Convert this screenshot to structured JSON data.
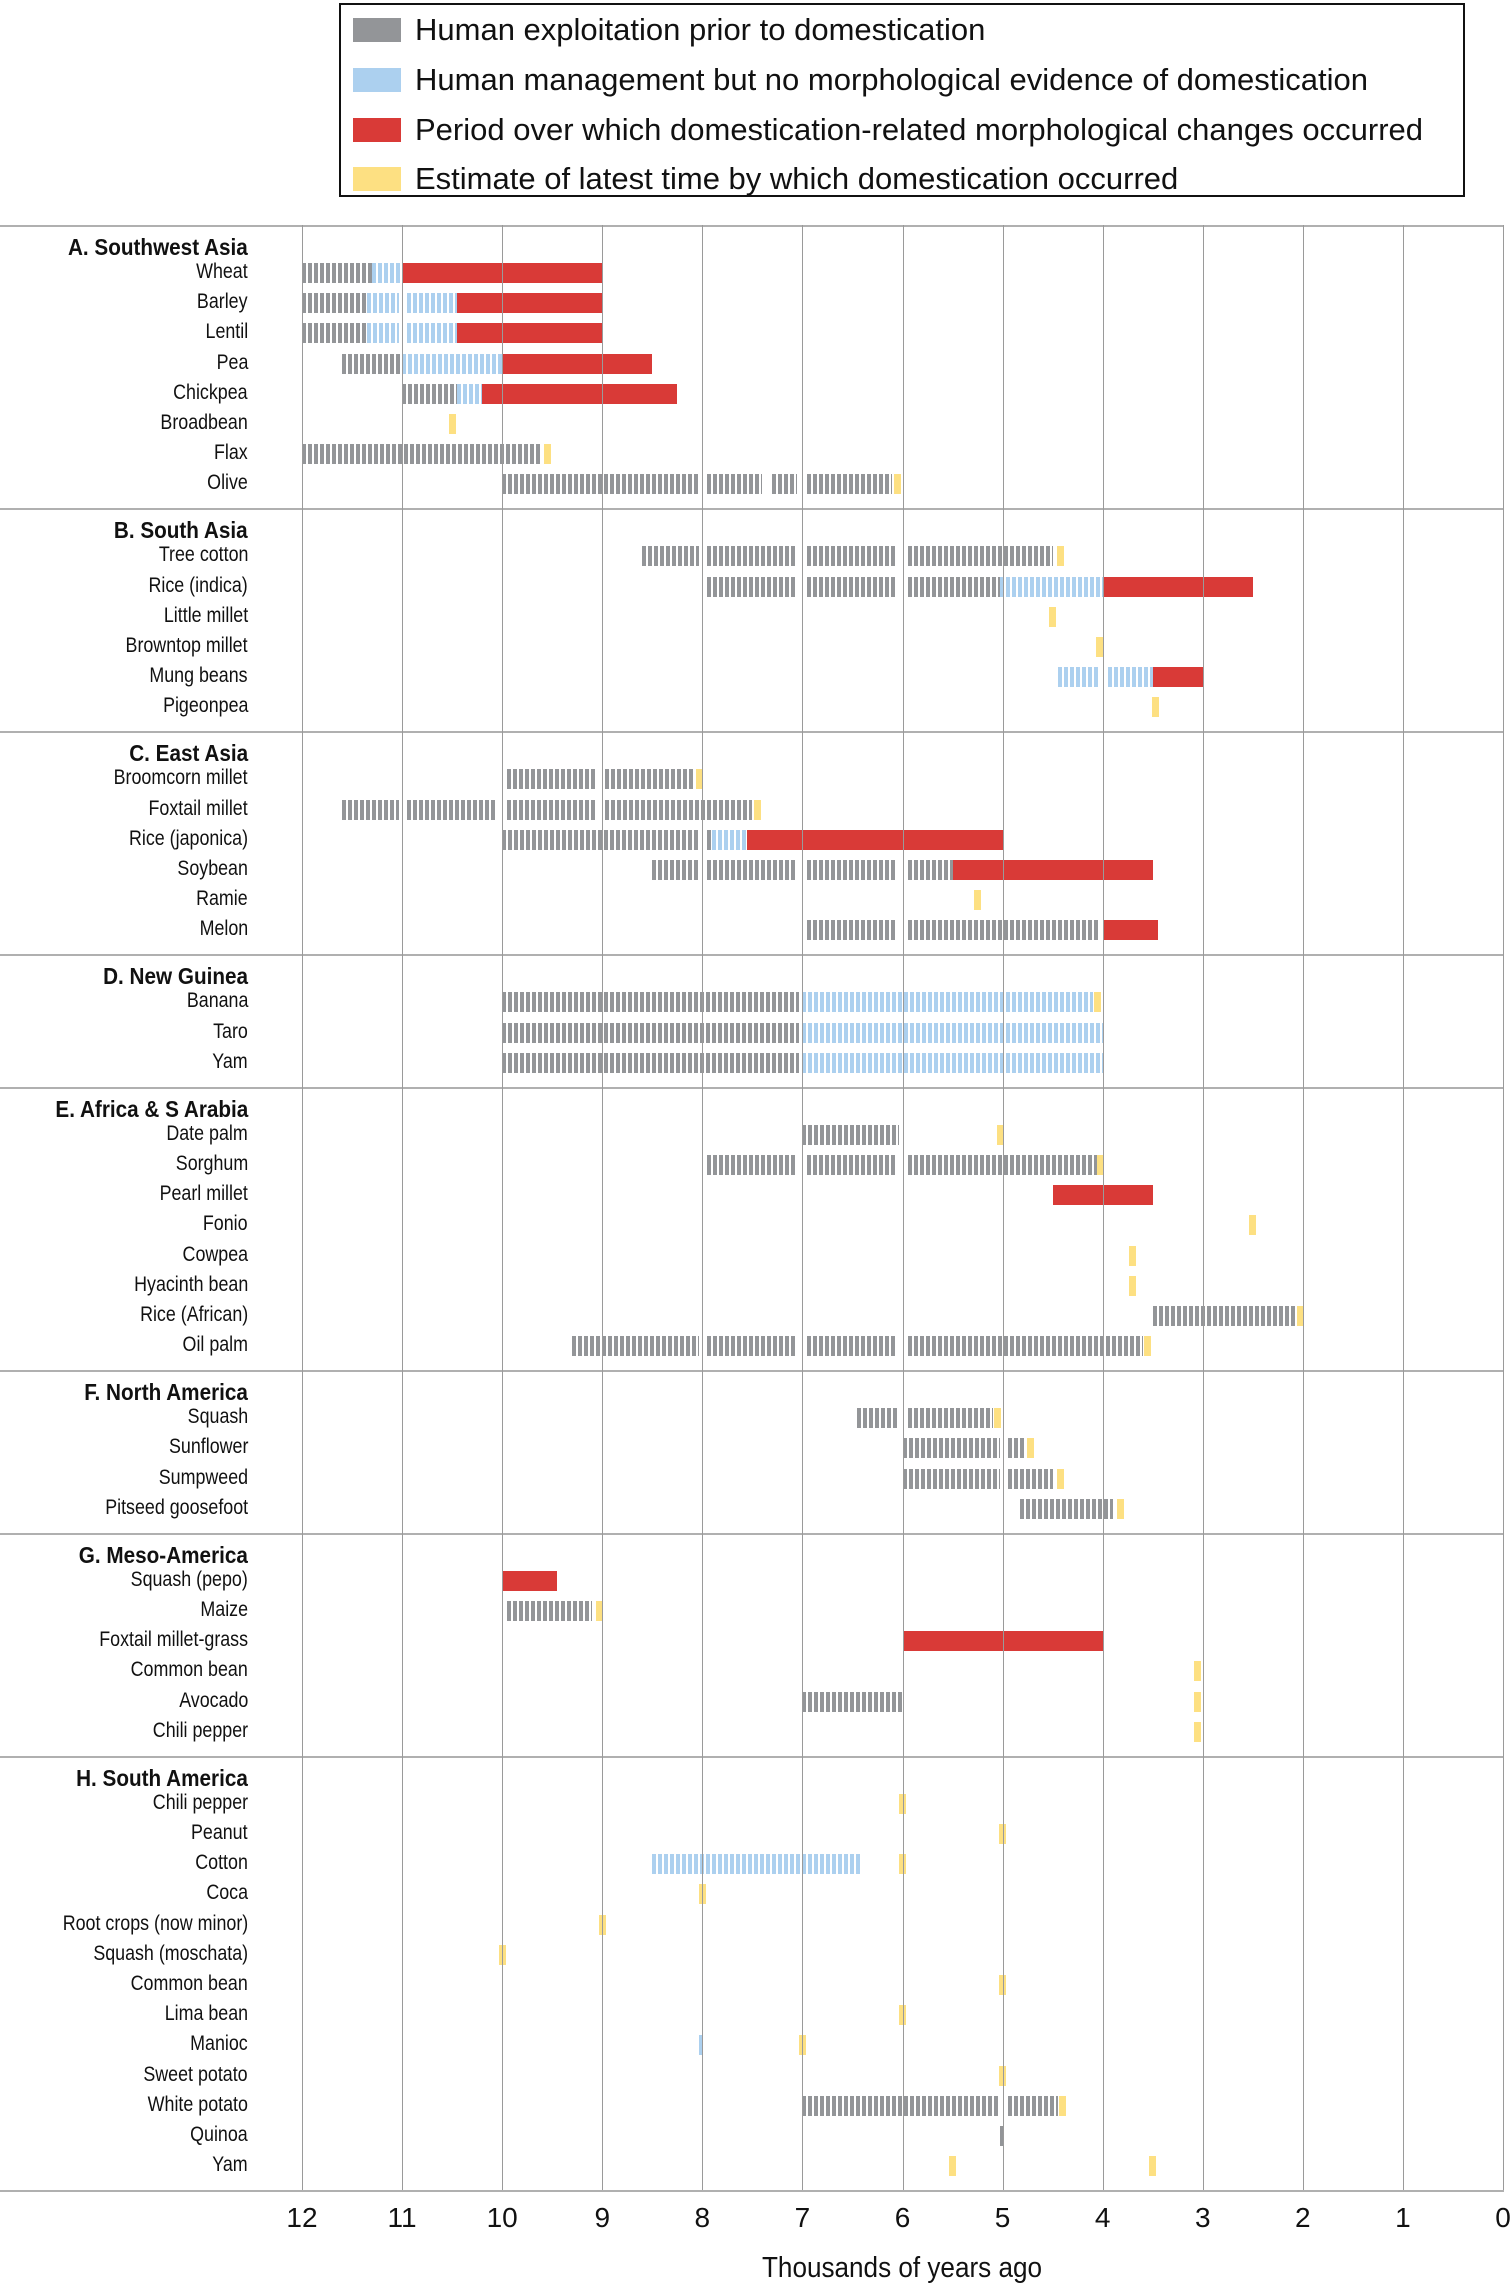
{
  "chart_data": {
    "type": "gantt-bar",
    "xlabel": "Thousands of years ago",
    "xlim": [
      12,
      0
    ],
    "x_reversed": true,
    "ticks": [
      "12",
      "11",
      "10",
      "9",
      "8",
      "7",
      "6",
      "5",
      "4",
      "3",
      "2",
      "1",
      "0"
    ],
    "grid": "vertical",
    "legend_placement": "top",
    "legend": [
      {
        "key": "exploitation",
        "label": "Human exploitation prior to domestication",
        "color": "#939598"
      },
      {
        "key": "management",
        "label": "Human management but no morphological evidence of domestication",
        "color": "#acd0ef"
      },
      {
        "key": "morphological",
        "label": "Period over which domestication-related morphological changes occurred",
        "color": "#d93a37"
      },
      {
        "key": "estimate",
        "label": "Estimate of latest time by which domestication occurred",
        "color": "#fde082"
      }
    ],
    "sections": [
      {
        "title": "A. Southwest Asia",
        "crops": [
          {
            "name": "Wheat",
            "segments": [
              [
                12,
                11.3,
                "exploitation"
              ],
              [
                11.3,
                11,
                "management"
              ],
              [
                11,
                9,
                "morphological"
              ]
            ]
          },
          {
            "name": "Barley",
            "segments": [
              [
                12,
                11.35,
                "exploitation"
              ],
              [
                11.35,
                11.03,
                "management"
              ],
              [
                10.95,
                10.45,
                "management"
              ],
              [
                10.45,
                9,
                "morphological"
              ]
            ]
          },
          {
            "name": "Lentil",
            "segments": [
              [
                12,
                11.35,
                "exploitation"
              ],
              [
                11.35,
                11.03,
                "management"
              ],
              [
                10.95,
                10.45,
                "management"
              ],
              [
                10.45,
                9,
                "morphological"
              ]
            ]
          },
          {
            "name": "Pea",
            "segments": [
              [
                11.6,
                11,
                "exploitation"
              ],
              [
                11,
                10,
                "management"
              ],
              [
                10,
                8.5,
                "morphological"
              ]
            ]
          },
          {
            "name": "Chickpea",
            "segments": [
              [
                11,
                10.45,
                "exploitation"
              ],
              [
                10.45,
                10.2,
                "management"
              ],
              [
                10.2,
                8.25,
                "morphological"
              ]
            ]
          },
          {
            "name": "Broadbean",
            "segments": [
              [
                10.5,
                10.5,
                "estimate"
              ]
            ]
          },
          {
            "name": "Flax",
            "segments": [
              [
                12,
                9.6,
                "exploitation"
              ],
              [
                9.55,
                9.55,
                "estimate"
              ]
            ]
          },
          {
            "name": "Olive",
            "segments": [
              [
                10,
                8.03,
                "exploitation"
              ],
              [
                7.95,
                7.4,
                "exploitation"
              ],
              [
                7.3,
                7.05,
                "exploitation"
              ],
              [
                6.95,
                6.1,
                "exploitation"
              ],
              [
                6.05,
                6.05,
                "estimate"
              ]
            ]
          }
        ]
      },
      {
        "title": "B. South Asia",
        "crops": [
          {
            "name": "Tree cotton",
            "segments": [
              [
                8.6,
                8.03,
                "exploitation"
              ],
              [
                7.95,
                7.05,
                "exploitation"
              ],
              [
                6.95,
                6.05,
                "exploitation"
              ],
              [
                5.95,
                4.5,
                "exploitation"
              ],
              [
                4.42,
                4.42,
                "estimate"
              ]
            ]
          },
          {
            "name": "Rice (indica)",
            "segments": [
              [
                7.95,
                7.05,
                "exploitation"
              ],
              [
                6.95,
                6.05,
                "exploitation"
              ],
              [
                5.95,
                5.03,
                "exploitation"
              ],
              [
                5.03,
                4,
                "management"
              ],
              [
                4,
                2.5,
                "morphological"
              ]
            ]
          },
          {
            "name": "Little millet",
            "segments": [
              [
                4.5,
                4.5,
                "estimate"
              ]
            ]
          },
          {
            "name": "Browntop millet",
            "segments": [
              [
                4.03,
                4.03,
                "estimate"
              ]
            ]
          },
          {
            "name": "Mung beans",
            "segments": [
              [
                4.45,
                4.05,
                "management"
              ],
              [
                3.95,
                3.5,
                "management"
              ],
              [
                3.5,
                3,
                "morphological"
              ]
            ]
          },
          {
            "name": "Pigeonpea",
            "segments": [
              [
                3.47,
                3.47,
                "estimate"
              ]
            ]
          }
        ]
      },
      {
        "title": "C. East Asia",
        "crops": [
          {
            "name": "Broomcorn millet",
            "segments": [
              [
                9.95,
                9.05,
                "exploitation"
              ],
              [
                8.97,
                8.07,
                "exploitation"
              ],
              [
                8.03,
                8.03,
                "estimate"
              ]
            ]
          },
          {
            "name": "Foxtail millet",
            "segments": [
              [
                11.6,
                11.03,
                "exploitation"
              ],
              [
                10.95,
                10.05,
                "exploitation"
              ],
              [
                9.95,
                9.05,
                "exploitation"
              ],
              [
                8.97,
                7.5,
                "exploitation"
              ],
              [
                7.45,
                7.45,
                "estimate"
              ]
            ]
          },
          {
            "name": "Rice (japonica)",
            "segments": [
              [
                10,
                8.03,
                "exploitation"
              ],
              [
                7.95,
                7.9,
                "exploitation"
              ],
              [
                7.9,
                7.55,
                "management"
              ],
              [
                7.55,
                5,
                "morphological"
              ]
            ]
          },
          {
            "name": "Soybean",
            "segments": [
              [
                8.5,
                8.03,
                "exploitation"
              ],
              [
                7.95,
                7.05,
                "exploitation"
              ],
              [
                6.95,
                6.05,
                "exploitation"
              ],
              [
                5.95,
                5.5,
                "exploitation"
              ],
              [
                5.5,
                3.5,
                "morphological"
              ]
            ]
          },
          {
            "name": "Ramie",
            "segments": [
              [
                5.25,
                5.25,
                "estimate"
              ]
            ]
          },
          {
            "name": "Melon",
            "segments": [
              [
                6.95,
                6.05,
                "exploitation"
              ],
              [
                5.95,
                4.05,
                "exploitation"
              ],
              [
                4,
                3.45,
                "morphological"
              ]
            ]
          }
        ]
      },
      {
        "title": "D. New Guinea",
        "crops": [
          {
            "name": "Banana",
            "segments": [
              [
                10,
                7.03,
                "exploitation"
              ],
              [
                7,
                4.1,
                "management"
              ],
              [
                4.05,
                4.05,
                "estimate"
              ]
            ]
          },
          {
            "name": "Taro",
            "segments": [
              [
                10,
                7.03,
                "exploitation"
              ],
              [
                7,
                4,
                "management"
              ]
            ]
          },
          {
            "name": "Yam",
            "segments": [
              [
                10,
                7.03,
                "exploitation"
              ],
              [
                7,
                4,
                "management"
              ]
            ]
          }
        ]
      },
      {
        "title": "E. Africa & S Arabia",
        "crops": [
          {
            "name": "Date palm",
            "segments": [
              [
                7,
                6.03,
                "exploitation"
              ],
              [
                5.02,
                5.02,
                "estimate"
              ]
            ]
          },
          {
            "name": "Sorghum",
            "segments": [
              [
                7.95,
                7.05,
                "exploitation"
              ],
              [
                6.95,
                6.05,
                "exploitation"
              ],
              [
                5.95,
                4.05,
                "exploitation"
              ],
              [
                4.02,
                4.02,
                "estimate"
              ]
            ]
          },
          {
            "name": "Pearl millet",
            "segments": [
              [
                4.5,
                3.5,
                "morphological"
              ]
            ]
          },
          {
            "name": "Fonio",
            "segments": [
              [
                2.5,
                2.5,
                "estimate"
              ]
            ]
          },
          {
            "name": "Cowpea",
            "segments": [
              [
                3.7,
                3.7,
                "estimate"
              ]
            ]
          },
          {
            "name": "Hyacinth bean",
            "segments": [
              [
                3.7,
                3.7,
                "estimate"
              ]
            ]
          },
          {
            "name": "Rice (African)",
            "segments": [
              [
                3.5,
                2.07,
                "exploitation"
              ],
              [
                2.02,
                2.02,
                "estimate"
              ]
            ]
          },
          {
            "name": "Oil palm",
            "segments": [
              [
                9.3,
                8.03,
                "exploitation"
              ],
              [
                7.95,
                7.05,
                "exploitation"
              ],
              [
                6.95,
                6.05,
                "exploitation"
              ],
              [
                5.95,
                3.6,
                "exploitation"
              ],
              [
                3.55,
                3.55,
                "estimate"
              ]
            ]
          }
        ]
      },
      {
        "title": "F. North America",
        "crops": [
          {
            "name": "Squash",
            "segments": [
              [
                6.45,
                6.05,
                "exploitation"
              ],
              [
                5.95,
                5.1,
                "exploitation"
              ],
              [
                5.05,
                5.05,
                "estimate"
              ]
            ]
          },
          {
            "name": "Sunflower",
            "segments": [
              [
                6,
                5.03,
                "exploitation"
              ],
              [
                4.95,
                4.77,
                "exploitation"
              ],
              [
                4.72,
                4.72,
                "estimate"
              ]
            ]
          },
          {
            "name": "Sumpweed",
            "segments": [
              [
                6,
                5.03,
                "exploitation"
              ],
              [
                4.95,
                4.5,
                "exploitation"
              ],
              [
                4.42,
                4.42,
                "estimate"
              ]
            ]
          },
          {
            "name": "Pitseed goosefoot",
            "segments": [
              [
                4.83,
                3.9,
                "exploitation"
              ],
              [
                3.82,
                3.82,
                "estimate"
              ]
            ]
          }
        ]
      },
      {
        "title": "G. Meso-America",
        "crops": [
          {
            "name": "Squash (pepo)",
            "segments": [
              [
                10,
                9.45,
                "morphological"
              ]
            ]
          },
          {
            "name": "Maize",
            "segments": [
              [
                9.95,
                9.1,
                "exploitation"
              ],
              [
                9.03,
                9.03,
                "estimate"
              ]
            ]
          },
          {
            "name": "Foxtail millet-grass",
            "segments": [
              [
                6,
                4,
                "morphological"
              ]
            ]
          },
          {
            "name": "Common bean",
            "segments": [
              [
                3.05,
                3.05,
                "estimate"
              ]
            ]
          },
          {
            "name": "Avocado",
            "segments": [
              [
                7,
                6,
                "exploitation"
              ],
              [
                3.05,
                3.05,
                "estimate"
              ]
            ]
          },
          {
            "name": "Chili pepper",
            "segments": [
              [
                3.05,
                3.05,
                "estimate"
              ]
            ]
          }
        ]
      },
      {
        "title": "H. South America",
        "crops": [
          {
            "name": "Chili pepper",
            "segments": [
              [
                6,
                6,
                "estimate"
              ]
            ]
          },
          {
            "name": "Peanut",
            "segments": [
              [
                5,
                5,
                "estimate"
              ]
            ]
          },
          {
            "name": "Cotton",
            "segments": [
              [
                8.5,
                6.4,
                "management"
              ],
              [
                6,
                6,
                "estimate"
              ]
            ]
          },
          {
            "name": "Coca",
            "segments": [
              [
                8,
                8,
                "estimate"
              ]
            ]
          },
          {
            "name": "Root crops (now minor)",
            "segments": [
              [
                9,
                9,
                "estimate"
              ]
            ]
          },
          {
            "name": "Squash (moschata)",
            "segments": [
              [
                10,
                10,
                "estimate"
              ]
            ]
          },
          {
            "name": "Common bean",
            "segments": [
              [
                5,
                5,
                "estimate"
              ]
            ]
          },
          {
            "name": "Lima bean",
            "segments": [
              [
                6,
                6,
                "estimate"
              ]
            ]
          },
          {
            "name": "Manioc",
            "segments": [
              [
                8.03,
                7.97,
                "management"
              ],
              [
                7,
                7,
                "estimate"
              ]
            ]
          },
          {
            "name": "Sweet potato",
            "segments": [
              [
                5,
                5,
                "estimate"
              ]
            ]
          },
          {
            "name": "White potato",
            "segments": [
              [
                7,
                5.03,
                "exploitation"
              ],
              [
                4.95,
                4.45,
                "exploitation"
              ],
              [
                4.4,
                4.4,
                "estimate"
              ]
            ]
          },
          {
            "name": "Quinoa",
            "segments": [
              [
                5.03,
                4.97,
                "exploitation"
              ]
            ]
          },
          {
            "name": "Yam",
            "segments": [
              [
                3.5,
                3.5,
                "estimate"
              ],
              [
                5.5,
                5.5,
                "estimate"
              ]
            ]
          }
        ]
      }
    ]
  }
}
